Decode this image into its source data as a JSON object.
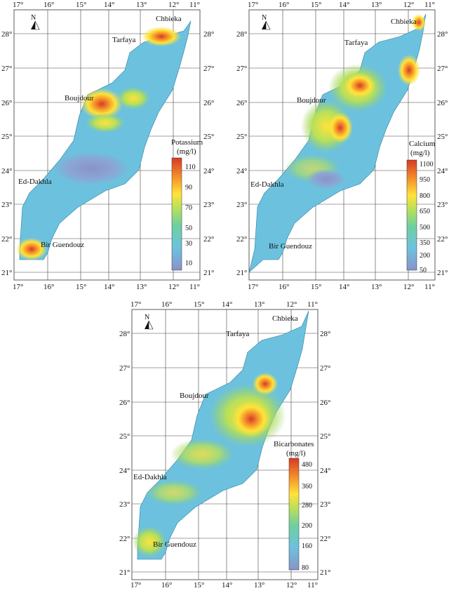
{
  "panels": [
    {
      "id": "potassium",
      "lon_labels": [
        "17°",
        "16°",
        "15°",
        "14°",
        "13°",
        "12°",
        "11°"
      ],
      "lat_labels": [
        "28°",
        "27°",
        "26°",
        "25°",
        "24°",
        "23°",
        "22°",
        "21°"
      ],
      "places": {
        "chbieka": "Chbieka",
        "tarfaya": "Tarfaya",
        "boujdour": "Boujdour",
        "ed_dakhla": "Ed-Dakhla",
        "bir_guendouz": "Bir Guendouz"
      },
      "legend": {
        "title": "Potassium",
        "unit": "(mg/l)",
        "ticks": [
          "110",
          "90",
          "70",
          "50",
          "30",
          "10"
        ]
      },
      "north_label": "N",
      "hot_spots": [
        "Chbieka",
        "Boujdour",
        "Bir Guendouz"
      ]
    },
    {
      "id": "calcium",
      "lon_labels": [
        "17°",
        "16°",
        "15°",
        "14°",
        "13°",
        "12°",
        "11°"
      ],
      "lat_labels": [
        "28°",
        "27°",
        "26°",
        "25°",
        "24°",
        "23°",
        "22°",
        "21°"
      ],
      "places": {
        "chbieka": "Chbieka",
        "tarfaya": "Tarfaya",
        "boujdour": "Boujdour",
        "ed_dakhla": "Ed-Dakhla",
        "bir_guendouz": "Bir Guendouz"
      },
      "legend": {
        "title": "Calcium",
        "unit": "(mg/l)",
        "ticks": [
          "1100",
          "950",
          "800",
          "650",
          "500",
          "350",
          "200",
          "50"
        ]
      },
      "north_label": "N",
      "hot_spots": [
        "Chbieka",
        "Boujdour"
      ]
    },
    {
      "id": "bicarbonates",
      "lon_labels": [
        "17°",
        "16°",
        "15°",
        "14°",
        "13°",
        "12°",
        "11°"
      ],
      "lat_labels": [
        "28°",
        "27°",
        "26°",
        "25°",
        "24°",
        "23°",
        "22°",
        "21°"
      ],
      "places": {
        "chbieka": "Chbieka",
        "tarfaya": "Tarfaya",
        "boujdour": "Boujdour",
        "ed_dakhla": "Ed-Dakhla",
        "bir_guendouz": "Bir Guendouz"
      },
      "legend": {
        "title": "Bicarbonates",
        "unit": "(mg/l)",
        "ticks": [
          "480",
          "360",
          "280",
          "200",
          "160",
          "80"
        ]
      },
      "north_label": "N",
      "hot_spots": [
        "Boujdour",
        "Bir Guendouz"
      ]
    }
  ],
  "colors": {
    "map_base": "#6cc2de",
    "low": "#8a93c9",
    "mid_green": "#95d160",
    "yellow": "#ffe23a",
    "orange": "#f5952a",
    "red": "#d83a26",
    "grid": "#333333"
  }
}
